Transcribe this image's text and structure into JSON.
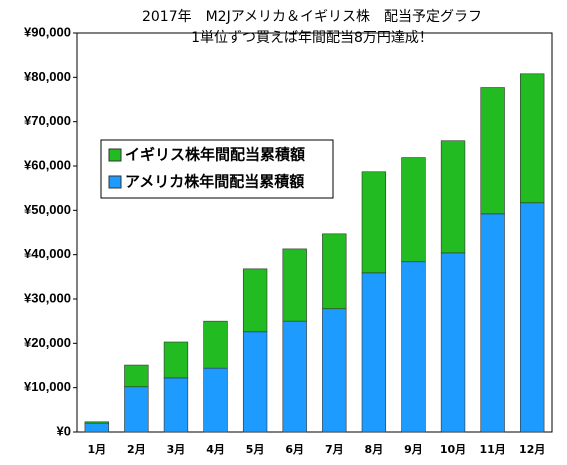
{
  "chart_data": {
    "type": "stacked_bar",
    "title": "2017年　M2Jアメリカ＆イギリス株　配当予定グラフ",
    "subtitle": "1単位ずつ買えば年間配当8万円達成！",
    "categories": [
      "1月",
      "2月",
      "3月",
      "4月",
      "5月",
      "6月",
      "7月",
      "8月",
      "9月",
      "10月",
      "11月",
      "12月"
    ],
    "series": [
      {
        "name": "アメリカ株年間配当累積額",
        "color": "#1e9bff",
        "values": [
          2000,
          10200,
          12200,
          14400,
          22600,
          25000,
          27800,
          35900,
          38400,
          40400,
          49200,
          51700
        ]
      },
      {
        "name": "イギリス株年間配当累積額",
        "color": "#22bb22",
        "values": [
          300,
          4900,
          8100,
          10600,
          14200,
          16300,
          16900,
          22800,
          23500,
          25300,
          28500,
          29100
        ]
      }
    ],
    "ylim": [
      0,
      90000
    ],
    "yticks": [
      {
        "value": 0,
        "label": "¥0"
      },
      {
        "value": 10000,
        "label": "¥10,000"
      },
      {
        "value": 20000,
        "label": "¥20,000"
      },
      {
        "value": 30000,
        "label": "¥30,000"
      },
      {
        "value": 40000,
        "label": "¥40,000"
      },
      {
        "value": 50000,
        "label": "¥50,000"
      },
      {
        "value": 60000,
        "label": "¥60,000"
      },
      {
        "value": 70000,
        "label": "¥70,000"
      },
      {
        "value": 80000,
        "label": "¥80,000"
      },
      {
        "value": 90000,
        "label": "¥90,000"
      }
    ],
    "legend": "upper left"
  }
}
